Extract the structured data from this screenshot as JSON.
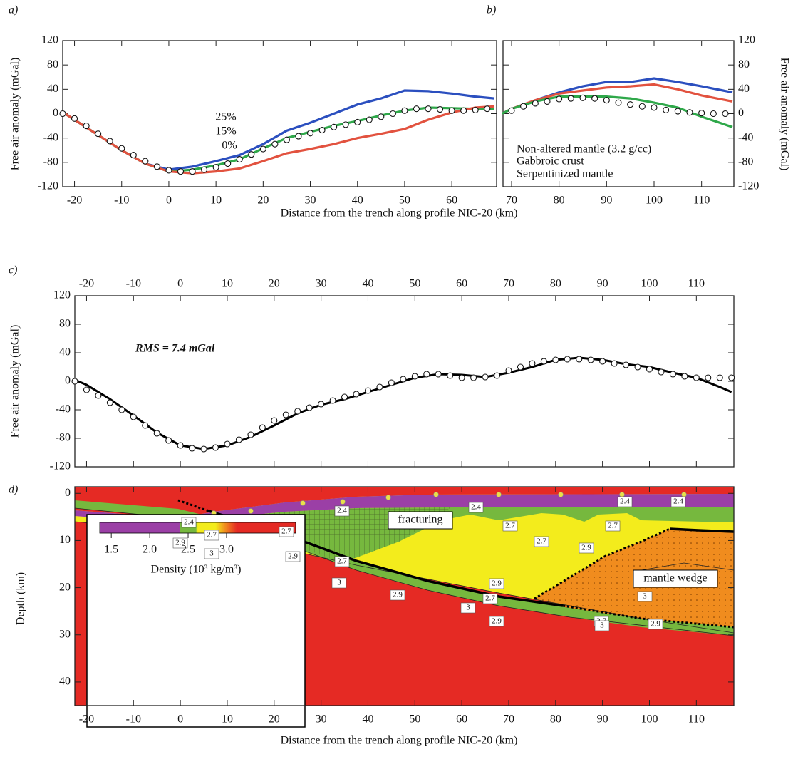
{
  "chart_data": [
    {
      "panel": "a)",
      "type": "line",
      "x_label": "Distance from the trench along profile NIC-20 (km)",
      "y_label": "Free air anomaly (mGal)",
      "xlim": [
        -22.5,
        69.5
      ],
      "ylim": [
        -120,
        120
      ],
      "xticks": [
        -20,
        -10,
        0,
        10,
        20,
        30,
        40,
        50,
        60
      ],
      "yticks": [
        -120,
        -80,
        -40,
        0,
        40,
        80,
        120
      ],
      "x": [
        -22,
        -15,
        -10,
        -5,
        0,
        5,
        10,
        15,
        20,
        25,
        30,
        35,
        40,
        45,
        50,
        55,
        60,
        65,
        69
      ],
      "series": [
        {
          "name": "25%",
          "color": "#2b4fbf",
          "values": [
            0,
            -35,
            -60,
            -82,
            -92,
            -87,
            -78,
            -68,
            -50,
            -28,
            -15,
            0,
            15,
            25,
            38,
            37,
            33,
            28,
            25
          ]
        },
        {
          "name": "15%",
          "color": "#2fa84a",
          "values": [
            0,
            -35,
            -60,
            -82,
            -95,
            -92,
            -85,
            -75,
            -57,
            -40,
            -30,
            -20,
            -12,
            -3,
            5,
            10,
            9,
            8,
            8
          ]
        },
        {
          "name": "0%",
          "color": "#e2523f",
          "values": [
            0,
            -35,
            -60,
            -82,
            -95,
            -98,
            -95,
            -90,
            -78,
            -65,
            -58,
            -50,
            -40,
            -33,
            -25,
            -10,
            2,
            10,
            12
          ]
        }
      ],
      "observed": {
        "x": [
          -22.5,
          -20,
          -17.5,
          -15,
          -12.5,
          -10,
          -7.5,
          -5,
          -2.5,
          0,
          2.5,
          5,
          7.5,
          10,
          12.5,
          15,
          17.5,
          20,
          22.5,
          25,
          27.5,
          30,
          32.5,
          35,
          37.5,
          40,
          42.5,
          45,
          47.5,
          50,
          52.5,
          55,
          57.5,
          60,
          62.5,
          65,
          67.5
        ],
        "values": [
          0,
          -8,
          -20,
          -33,
          -45,
          -57,
          -68,
          -78,
          -87,
          -93,
          -95,
          -95,
          -92,
          -88,
          -82,
          -75,
          -67,
          -58,
          -50,
          -43,
          -37,
          -32,
          -27,
          -22,
          -18,
          -14,
          -10,
          -5,
          0,
          5,
          8,
          8,
          7,
          5,
          5,
          6,
          8
        ]
      }
    },
    {
      "panel": "b)",
      "type": "line",
      "y_label": "Free air anomaly (mGal)",
      "xlim": [
        68.2,
        116.8
      ],
      "ylim": [
        -120,
        120
      ],
      "xticks": [
        70,
        80,
        90,
        100,
        110
      ],
      "yticks": [
        -120,
        -80,
        -40,
        0,
        40,
        80,
        120
      ],
      "x": [
        68,
        70,
        75,
        80,
        85,
        90,
        95,
        100,
        105,
        110,
        116.5
      ],
      "series": [
        {
          "name": "Non-altered mantle (3.2 g/cc)",
          "color": "#2b4fbf",
          "values": [
            0,
            8,
            22,
            35,
            45,
            52,
            52,
            58,
            52,
            45,
            35
          ]
        },
        {
          "name": "Gabbroic crust",
          "color": "#e2523f",
          "values": [
            0,
            8,
            22,
            33,
            38,
            43,
            45,
            48,
            40,
            30,
            20
          ]
        },
        {
          "name": "Serpentinized mantle",
          "color": "#2fa84a",
          "values": [
            0,
            8,
            20,
            28,
            28,
            28,
            25,
            18,
            10,
            -5,
            -22
          ]
        }
      ],
      "observed": {
        "x": [
          70,
          72.5,
          75,
          77.5,
          80,
          82.5,
          85,
          87.5,
          90,
          92.5,
          95,
          97.5,
          100,
          102.5,
          105,
          107.5,
          110,
          112.5,
          115
        ],
        "values": [
          5,
          12,
          17,
          20,
          24,
          25,
          26,
          25,
          22,
          18,
          15,
          12,
          10,
          6,
          4,
          2,
          1,
          0,
          0
        ]
      }
    },
    {
      "panel": "c)",
      "type": "line",
      "y_label": "Free air anomaly (mGal)",
      "annotation": "RMS = 7.4 mGal",
      "xlim": [
        -22.5,
        118
      ],
      "ylim": [
        -120,
        120
      ],
      "xticks": [
        -20,
        -10,
        0,
        10,
        20,
        30,
        40,
        50,
        60,
        70,
        80,
        90,
        100,
        110
      ],
      "yticks": [
        -120,
        -80,
        -40,
        0,
        40,
        80,
        120
      ],
      "x": [
        -22.5,
        -20,
        -15,
        -10,
        -5,
        0,
        5,
        10,
        15,
        20,
        25,
        30,
        35,
        40,
        45,
        50,
        55,
        60,
        65,
        70,
        75,
        80,
        85,
        90,
        95,
        100,
        105,
        110,
        115,
        117.5
      ],
      "series": [
        {
          "color": "#000000",
          "values": [
            2,
            -5,
            -25,
            -48,
            -72,
            -90,
            -95,
            -90,
            -78,
            -62,
            -45,
            -33,
            -25,
            -15,
            -5,
            5,
            10,
            9,
            6,
            12,
            20,
            30,
            33,
            30,
            24,
            20,
            12,
            5,
            -8,
            -15
          ]
        }
      ],
      "observed": {
        "x": [
          -22.5,
          -20,
          -17.5,
          -15,
          -12.5,
          -10,
          -7.5,
          -5,
          -2.5,
          0,
          2.5,
          5,
          7.5,
          10,
          12.5,
          15,
          17.5,
          20,
          22.5,
          25,
          27.5,
          30,
          32.5,
          35,
          37.5,
          40,
          42.5,
          45,
          47.5,
          50,
          52.5,
          55,
          57.5,
          60,
          62.5,
          65,
          67.5,
          70,
          72.5,
          75,
          77.5,
          80,
          82.5,
          85,
          87.5,
          90,
          92.5,
          95,
          97.5,
          100,
          102.5,
          105,
          107.5,
          110,
          112.5,
          115,
          117.5
        ],
        "values": [
          0,
          -12,
          -20,
          -30,
          -40,
          -50,
          -62,
          -73,
          -83,
          -90,
          -94,
          -95,
          -93,
          -88,
          -82,
          -75,
          -65,
          -55,
          -47,
          -42,
          -37,
          -32,
          -27,
          -22,
          -18,
          -13,
          -8,
          -2,
          3,
          7,
          10,
          10,
          8,
          5,
          5,
          6,
          8,
          15,
          20,
          25,
          28,
          30,
          31,
          31,
          30,
          28,
          25,
          23,
          20,
          17,
          13,
          10,
          7,
          5,
          5,
          5,
          5
        ]
      }
    },
    {
      "panel": "d)",
      "type": "cross-section",
      "x_label": "Distance from the trench along profile NIC-20 (km)",
      "y_label": "Depth (km)",
      "xlim": [
        -22.5,
        118
      ],
      "ylim": [
        -1.4,
        45
      ],
      "inverted": true,
      "xticks": [
        -20,
        -10,
        0,
        10,
        20,
        30,
        40,
        50,
        60,
        70,
        80,
        90,
        100,
        110
      ],
      "yticks": [
        0,
        10,
        20,
        30,
        40
      ],
      "annotations": [
        "fracturing",
        "mantle wedge"
      ],
      "contour_labels": [
        "2.4",
        "2.4",
        "2.4",
        "2.4",
        "2.4",
        "2.7",
        "2.7",
        "2.7",
        "2.7",
        "2.7",
        "2.7",
        "2.7",
        "2.7",
        "2.7",
        "2.9",
        "2.9",
        "2.9",
        "2.9",
        "2.9",
        "2.9",
        "2.9",
        "3",
        "3",
        "3",
        "3",
        "3"
      ],
      "colorbar": {
        "label": "Density (10³ kg/m³)",
        "lim": [
          1.35,
          3.9
        ],
        "ticks": [
          1.5,
          {
            "value": 2,
            "label": "2.0"
          },
          2.5,
          {
            "value": 3,
            "label": "3.0"
          }
        ]
      }
    }
  ]
}
